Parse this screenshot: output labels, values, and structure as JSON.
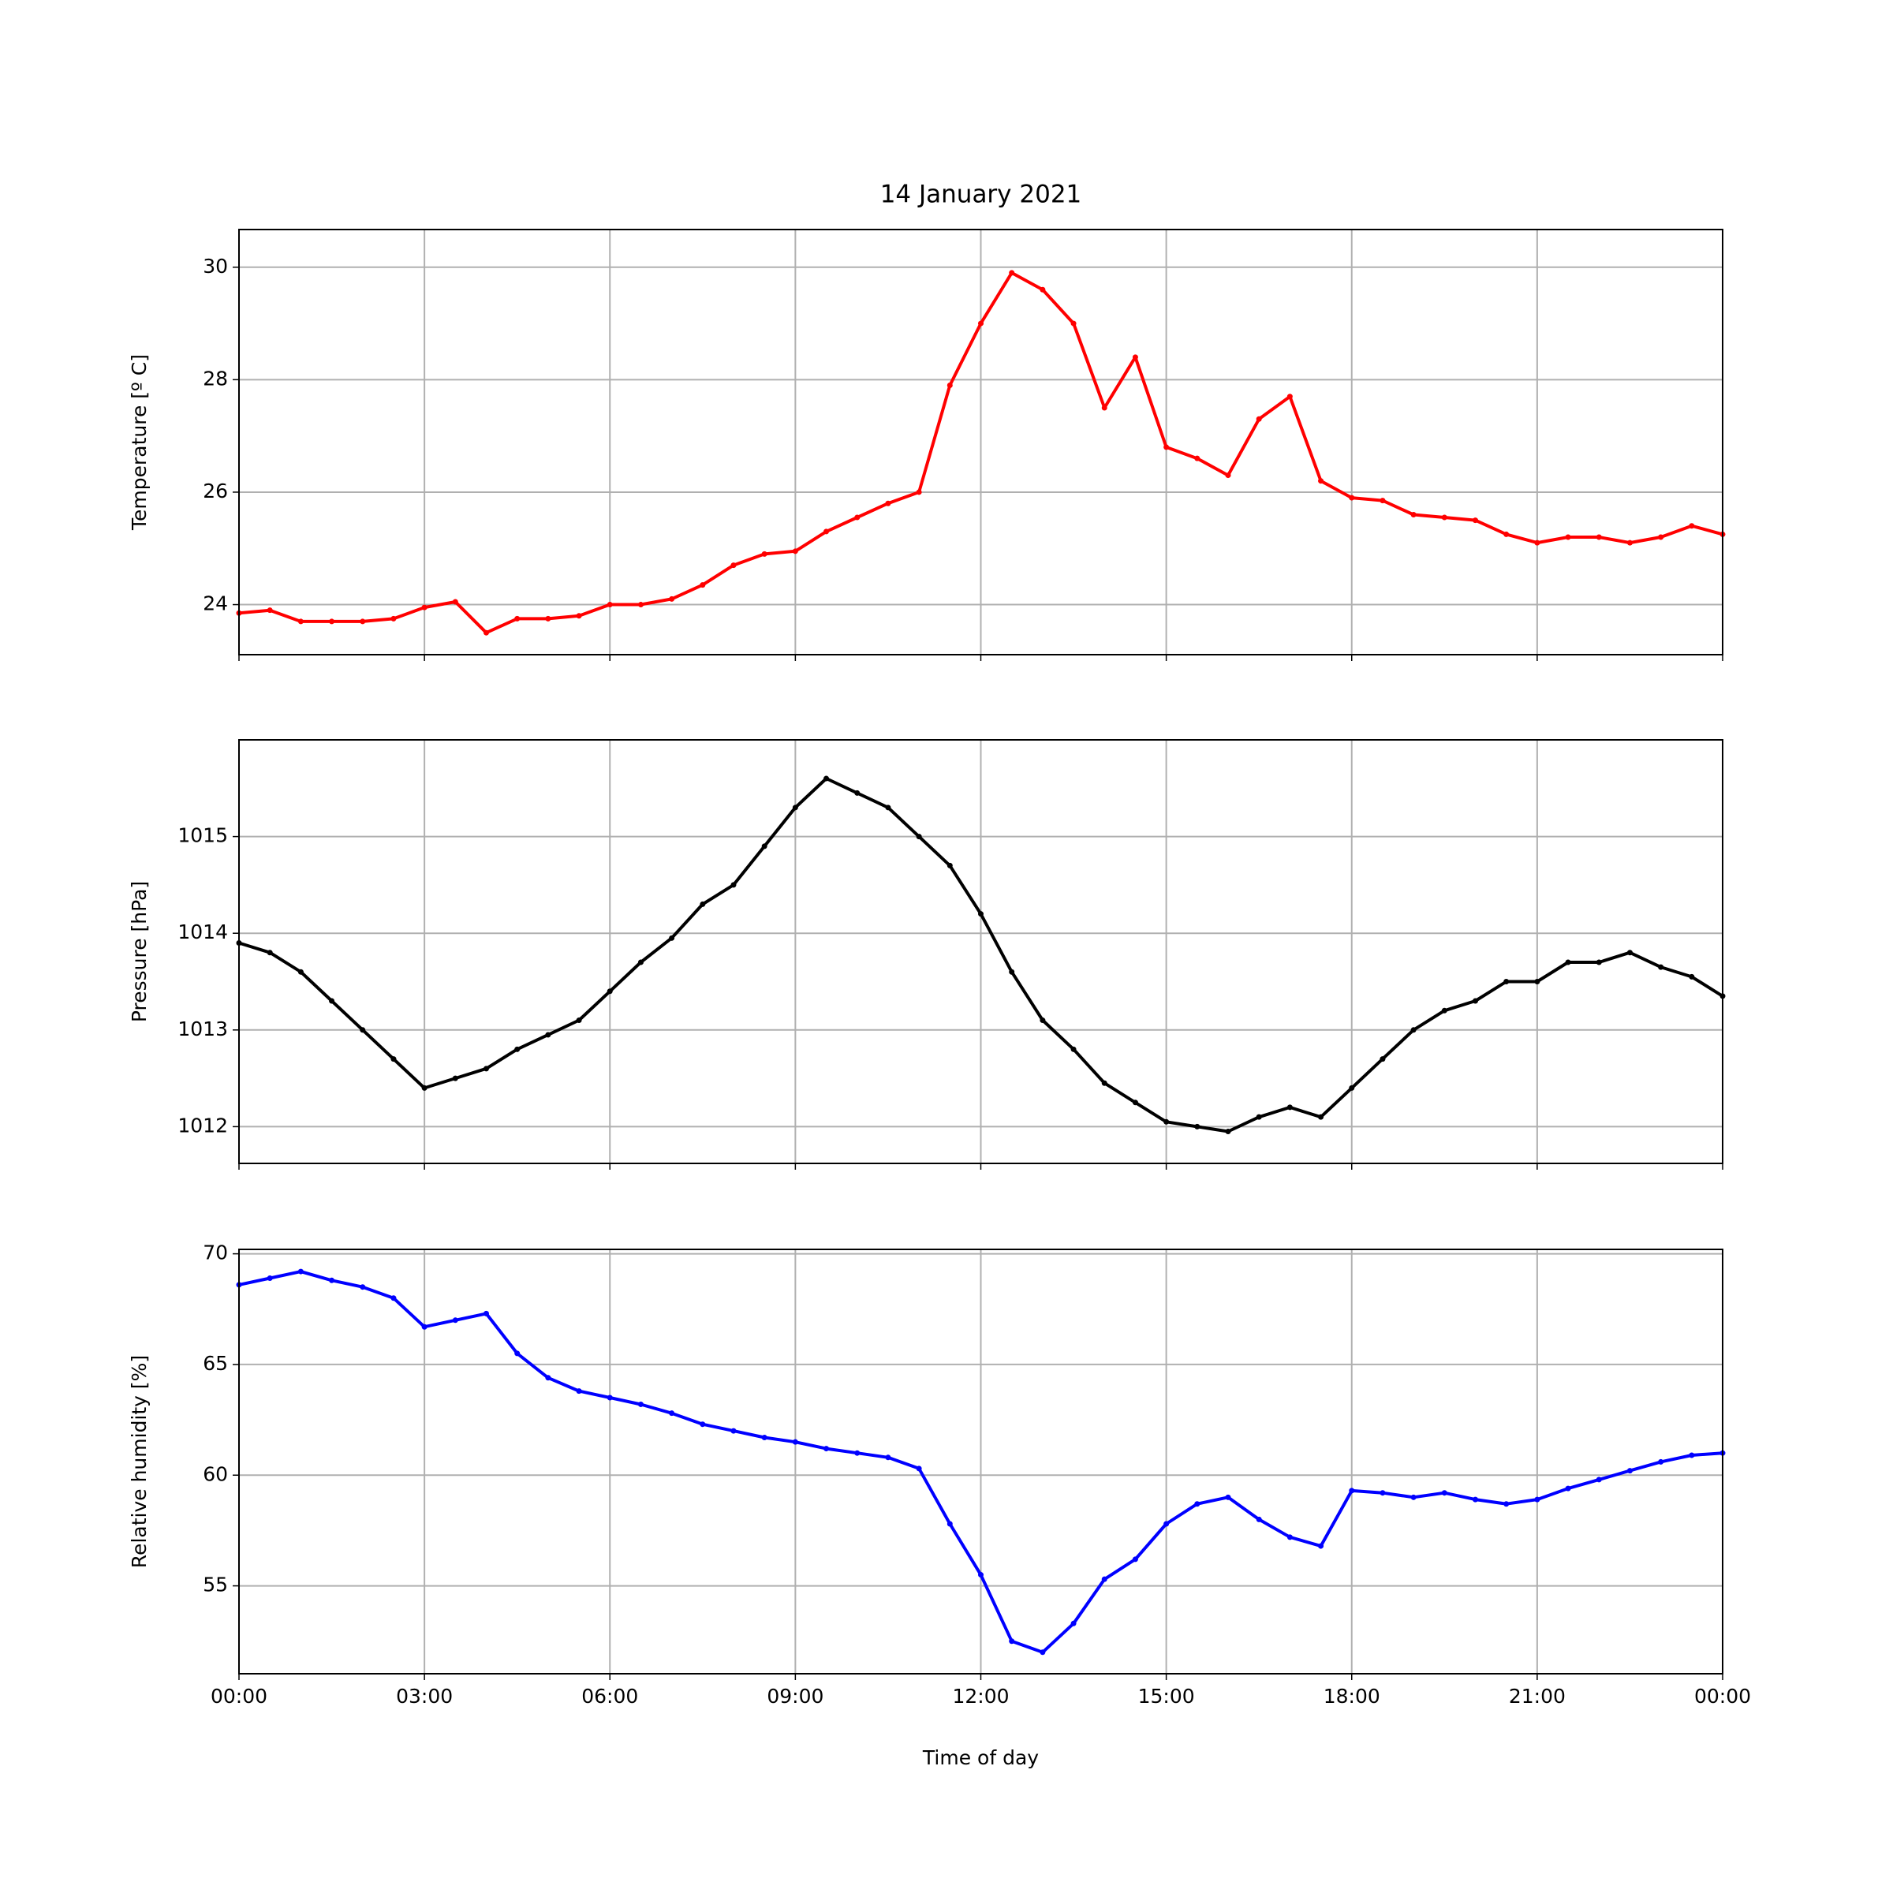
{
  "chart_data": [
    {
      "type": "line",
      "title": "14 January 2021",
      "y_label": "Temperature [º C]",
      "color": "#ff0000",
      "grid": true,
      "x": [
        0,
        0.5,
        1,
        1.5,
        2,
        2.5,
        3,
        3.5,
        4,
        4.5,
        5,
        5.5,
        6,
        6.5,
        7,
        7.5,
        8,
        8.5,
        9,
        9.5,
        10,
        10.5,
        11,
        11.5,
        12,
        12.5,
        13,
        13.5,
        14,
        14.5,
        15,
        15.5,
        16,
        16.5,
        17,
        17.5,
        18,
        18.5,
        19,
        19.5,
        20,
        20.5,
        21,
        21.5,
        22,
        22.5,
        23,
        23.5,
        24
      ],
      "values": [
        23.85,
        23.9,
        23.7,
        23.7,
        23.7,
        23.75,
        23.95,
        24.05,
        23.5,
        23.75,
        23.75,
        23.8,
        24.0,
        24.0,
        24.1,
        24.35,
        24.7,
        24.9,
        24.95,
        25.3,
        25.55,
        25.8,
        26.0,
        27.9,
        29.0,
        29.9,
        29.6,
        29.0,
        27.5,
        28.4,
        26.8,
        26.6,
        26.3,
        27.3,
        27.7,
        26.2,
        25.9,
        25.85,
        25.6,
        25.55,
        25.5,
        25.25,
        25.1,
        25.2,
        25.2,
        25.1,
        25.2,
        25.4,
        25.25
      ],
      "xlim": [
        0,
        24
      ],
      "xticks": [
        0,
        3,
        6,
        9,
        12,
        15,
        18,
        21,
        24
      ],
      "ylim": [
        23.11,
        30.67
      ],
      "yticks": [
        24,
        26,
        28,
        30
      ]
    },
    {
      "type": "line",
      "y_label": "Pressure [hPa]",
      "color": "#000000",
      "grid": true,
      "x": [
        0,
        0.5,
        1,
        1.5,
        2,
        2.5,
        3,
        3.5,
        4,
        4.5,
        5,
        5.5,
        6,
        6.5,
        7,
        7.5,
        8,
        8.5,
        9,
        9.5,
        10,
        10.5,
        11,
        11.5,
        12,
        12.5,
        13,
        13.5,
        14,
        14.5,
        15,
        15.5,
        16,
        16.5,
        17,
        17.5,
        18,
        18.5,
        19,
        19.5,
        20,
        20.5,
        21,
        21.5,
        22,
        22.5,
        23,
        23.5,
        24
      ],
      "values": [
        1013.9,
        1013.8,
        1013.6,
        1013.3,
        1013.0,
        1012.7,
        1012.4,
        1012.5,
        1012.6,
        1012.8,
        1012.95,
        1013.1,
        1013.4,
        1013.7,
        1013.95,
        1014.3,
        1014.5,
        1014.9,
        1015.3,
        1015.6,
        1015.45,
        1015.3,
        1015.0,
        1014.7,
        1014.2,
        1013.6,
        1013.1,
        1012.8,
        1012.45,
        1012.25,
        1012.05,
        1012.0,
        1011.95,
        1012.1,
        1012.2,
        1012.1,
        1012.4,
        1012.7,
        1013.0,
        1013.2,
        1013.3,
        1013.5,
        1013.5,
        1013.7,
        1013.7,
        1013.8,
        1013.65,
        1013.55,
        1013.35
      ],
      "xlim": [
        0,
        24
      ],
      "xticks": [
        0,
        3,
        6,
        9,
        12,
        15,
        18,
        21,
        24
      ],
      "ylim": [
        1011.62,
        1016.0
      ],
      "yticks": [
        1012,
        1013,
        1014,
        1015
      ]
    },
    {
      "type": "line",
      "y_label": "Relative humidity [%]",
      "x_label": "Time of day",
      "color": "#0000ff",
      "grid": true,
      "x": [
        0,
        0.5,
        1,
        1.5,
        2,
        2.5,
        3,
        3.5,
        4,
        4.5,
        5,
        5.5,
        6,
        6.5,
        7,
        7.5,
        8,
        8.5,
        9,
        9.5,
        10,
        10.5,
        11,
        11.5,
        12,
        12.5,
        13,
        13.5,
        14,
        14.5,
        15,
        15.5,
        16,
        16.5,
        17,
        17.5,
        18,
        18.5,
        19,
        19.5,
        20,
        20.5,
        21,
        21.5,
        22,
        22.5,
        23,
        23.5,
        24
      ],
      "values": [
        68.6,
        68.9,
        69.2,
        68.8,
        68.5,
        68.0,
        66.7,
        67.0,
        67.3,
        65.5,
        64.4,
        63.8,
        63.5,
        63.2,
        62.8,
        62.3,
        62.0,
        61.7,
        61.5,
        61.2,
        61.0,
        60.8,
        60.3,
        57.8,
        55.5,
        52.5,
        52.0,
        53.3,
        55.3,
        56.2,
        57.8,
        58.7,
        59.0,
        58.0,
        57.2,
        56.8,
        59.3,
        59.2,
        59.0,
        59.2,
        58.9,
        58.7,
        58.9,
        59.4,
        59.8,
        60.2,
        60.6,
        60.9,
        61.0
      ],
      "xlim": [
        0,
        24
      ],
      "xticks": [
        {
          "value": 0,
          "label": "00:00"
        },
        {
          "value": 3,
          "label": "03:00"
        },
        {
          "value": 6,
          "label": "06:00"
        },
        {
          "value": 9,
          "label": "09:00"
        },
        {
          "value": 12,
          "label": "12:00"
        },
        {
          "value": 15,
          "label": "15:00"
        },
        {
          "value": 18,
          "label": "18:00"
        },
        {
          "value": 21,
          "label": "21:00"
        },
        {
          "value": 24,
          "label": "00:00"
        }
      ],
      "ylim": [
        51.03,
        70.2
      ],
      "yticks": [
        55,
        60,
        65,
        70
      ]
    }
  ]
}
